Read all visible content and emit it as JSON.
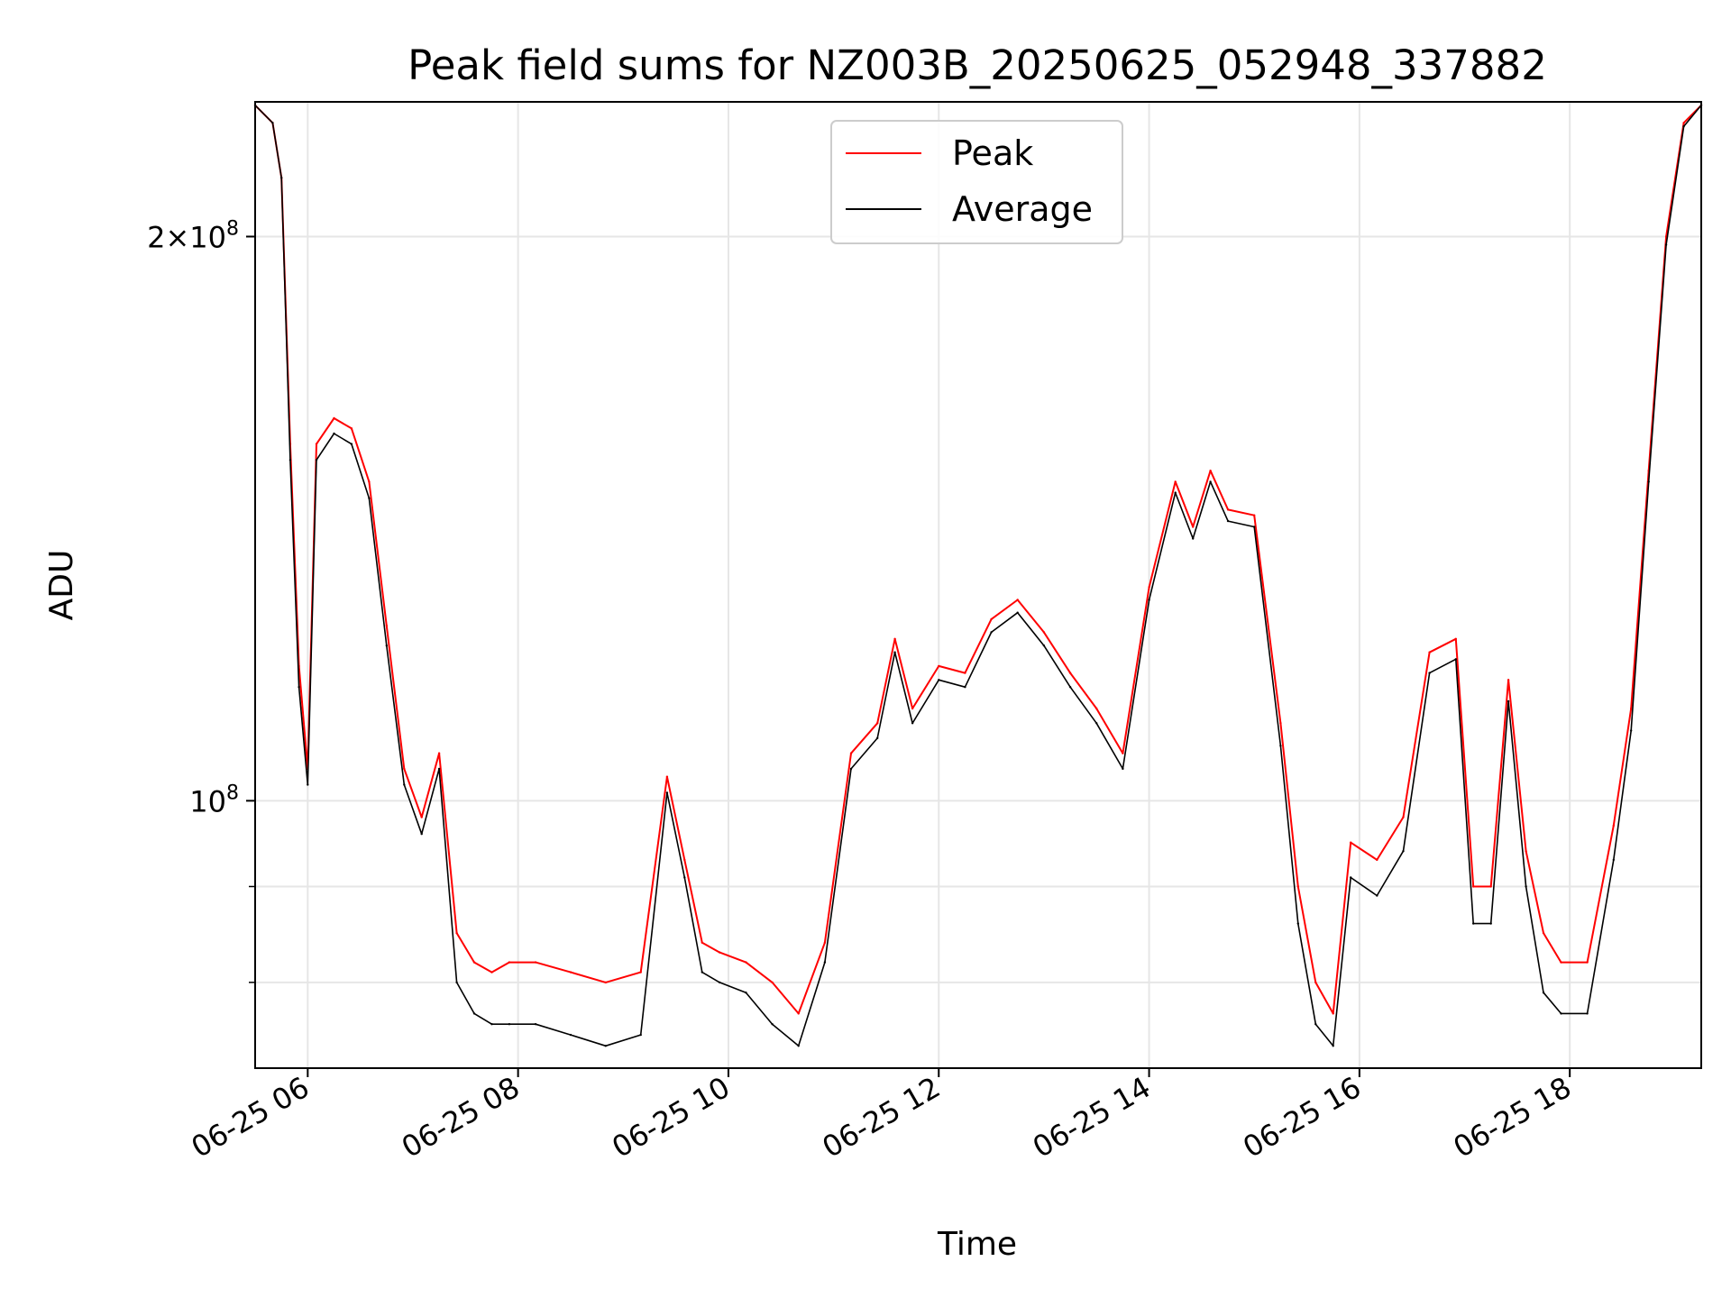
{
  "chart_data": {
    "type": "line",
    "title": "Peak field sums for NZ003B_20250625_052948_337882",
    "xlabel": "Time",
    "ylabel": "ADU",
    "y_scale": "log",
    "ylim": [
      72000000,
      236000000
    ],
    "xlim": [
      "06-25 05:30",
      "06-25 19:15"
    ],
    "grid": true,
    "legend_position": "top-center",
    "x_ticks": [
      "06-25 06",
      "06-25 08",
      "06-25 10",
      "06-25 12",
      "06-25 14",
      "06-25 16",
      "06-25 18"
    ],
    "y_ticks": [
      {
        "mantissa": "2",
        "exponent": "8",
        "value": 200000000
      },
      {
        "mantissa": "",
        "exponent": "8",
        "value": 100000000
      }
    ],
    "x": [
      "06-25 05:30",
      "06-25 05:40",
      "06-25 05:45",
      "06-25 05:50",
      "06-25 05:55",
      "06-25 06:00",
      "06-25 06:05",
      "06-25 06:15",
      "06-25 06:25",
      "06-25 06:35",
      "06-25 06:45",
      "06-25 06:55",
      "06-25 07:05",
      "06-25 07:15",
      "06-25 07:25",
      "06-25 07:35",
      "06-25 07:45",
      "06-25 07:55",
      "06-25 08:10",
      "06-25 08:30",
      "06-25 08:50",
      "06-25 09:10",
      "06-25 09:25",
      "06-25 09:35",
      "06-25 09:45",
      "06-25 09:55",
      "06-25 10:10",
      "06-25 10:25",
      "06-25 10:40",
      "06-25 10:55",
      "06-25 11:10",
      "06-25 11:25",
      "06-25 11:35",
      "06-25 11:45",
      "06-25 12:00",
      "06-25 12:15",
      "06-25 12:30",
      "06-25 12:45",
      "06-25 13:00",
      "06-25 13:15",
      "06-25 13:30",
      "06-25 13:45",
      "06-25 14:00",
      "06-25 14:15",
      "06-25 14:25",
      "06-25 14:35",
      "06-25 14:45",
      "06-25 15:00",
      "06-25 15:15",
      "06-25 15:25",
      "06-25 15:35",
      "06-25 15:45",
      "06-25 15:55",
      "06-25 16:10",
      "06-25 16:25",
      "06-25 16:40",
      "06-25 16:55",
      "06-25 17:05",
      "06-25 17:15",
      "06-25 17:25",
      "06-25 17:35",
      "06-25 17:45",
      "06-25 17:55",
      "06-25 18:10",
      "06-25 18:25",
      "06-25 18:35",
      "06-25 18:45",
      "06-25 18:55",
      "06-25 19:05",
      "06-25 19:15"
    ],
    "series": [
      {
        "name": "Peak",
        "color": "#ff0000",
        "values": [
          235000000,
          230000000,
          215000000,
          155000000,
          118000000,
          104000000,
          155000000,
          160000000,
          158000000,
          148000000,
          124000000,
          104000000,
          98000000,
          106000000,
          85000000,
          82000000,
          81000000,
          82000000,
          82000000,
          81000000,
          80000000,
          81000000,
          103000000,
          93000000,
          84000000,
          83000000,
          82000000,
          80000000,
          77000000,
          84000000,
          106000000,
          110000000,
          122000000,
          112000000,
          118000000,
          117000000,
          125000000,
          128000000,
          123000000,
          117000000,
          112000000,
          106000000,
          130000000,
          148000000,
          140000000,
          150000000,
          143000000,
          142000000,
          110000000,
          90000000,
          80000000,
          77000000,
          95000000,
          93000000,
          98000000,
          120000000,
          122000000,
          90000000,
          90000000,
          116000000,
          94000000,
          85000000,
          82000000,
          82000000,
          97000000,
          112000000,
          150000000,
          200000000,
          230000000,
          235000000
        ]
      },
      {
        "name": "Average",
        "color": "#000000",
        "values": [
          235000000,
          230000000,
          215000000,
          152000000,
          115000000,
          102000000,
          152000000,
          157000000,
          155000000,
          145000000,
          121000000,
          102000000,
          96000000,
          104000000,
          80000000,
          77000000,
          76000000,
          76000000,
          76000000,
          75000000,
          74000000,
          75000000,
          101000000,
          91000000,
          81000000,
          80000000,
          79000000,
          76000000,
          74000000,
          82000000,
          104000000,
          108000000,
          120000000,
          110000000,
          116000000,
          115000000,
          123000000,
          126000000,
          121000000,
          115000000,
          110000000,
          104000000,
          128000000,
          146000000,
          138000000,
          148000000,
          141000000,
          140000000,
          107000000,
          86000000,
          76000000,
          74000000,
          91000000,
          89000000,
          94000000,
          117000000,
          119000000,
          86000000,
          86000000,
          113000000,
          90000000,
          79000000,
          77000000,
          77000000,
          93000000,
          109000000,
          148000000,
          198000000,
          229000000,
          235000000
        ]
      }
    ]
  }
}
